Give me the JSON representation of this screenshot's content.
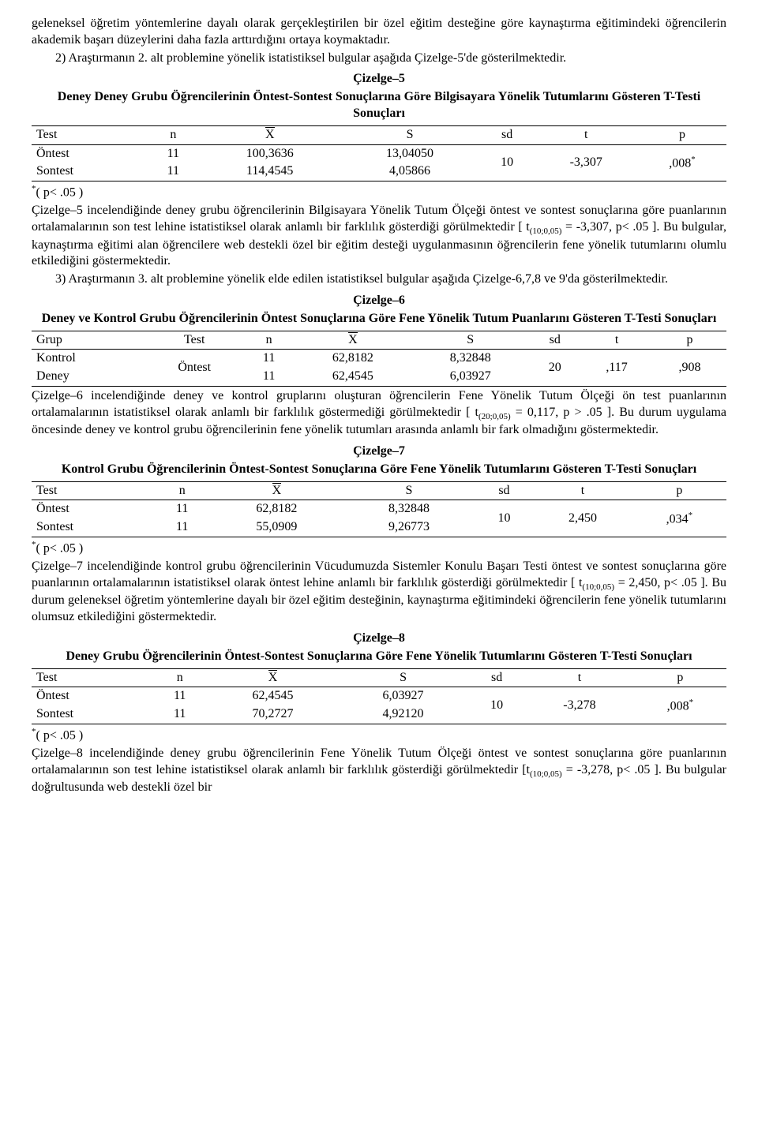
{
  "para1": "geleneksel öğretim yöntemlerine dayalı olarak gerçekleştirilen bir özel eğitim desteğine göre kaynaştırma eğitimindeki öğrencilerin akademik başarı düzeylerini daha fazla arttırdığını ortaya koymaktadır.",
  "para2": "2) Araştırmanın 2. alt problemine yönelik istatistiksel bulgular aşağıda Çizelge-5'de gösterilmektedir.",
  "t5": {
    "title": "Çizelge–5",
    "subtitle": "Deney Grubu Öğrencilerinin Öntest-Sontest Sonuçlarına Göre Bilgisayara Yönelik Tutumlarını Gösteren T-Testi Sonuçları",
    "h_test": "Test",
    "h_n": "n",
    "h_x": "X",
    "h_s": "S",
    "h_sd": "sd",
    "h_t": "t",
    "h_p": "p",
    "r1_test": "Öntest",
    "r1_n": "11",
    "r1_x": "100,3636",
    "r1_s": "13,04050",
    "r2_test": "Sontest",
    "r2_n": "11",
    "r2_x": "114,4545",
    "r2_s": "4,05866",
    "sd": "10",
    "t": "-3,307",
    "p": ",008",
    "note": "( p< .05 )"
  },
  "para3a": "Çizelge–5 incelendiğinde deney grubu öğrencilerinin Bilgisayara Yönelik Tutum Ölçeği öntest ve sontest sonuçlarına göre puanlarının ortalamalarının son test lehine istatistiksel olarak anlamlı bir farklılık gösterdiği görülmektedir [ t",
  "para3b": " = -3,307,   p< .05 ]. Bu bulgular,  kaynaştırma eğitimi alan öğrencilere web destekli özel bir eğitim desteği uygulanmasının öğrencilerin fene yönelik tutumlarını olumlu etkilediğini göstermektedir.",
  "sub3": "(10;0,05)",
  "para4": "3) Araştırmanın 3. alt problemine yönelik elde edilen istatistiksel bulgular aşağıda Çizelge-6,7,8 ve 9'da gösterilmektedir.",
  "t6": {
    "title": "Çizelge–6",
    "subtitle": "Deney ve Kontrol Grubu Öğrencilerinin Öntest Sonuçlarına Göre Fene Yönelik Tutum Puanlarını Gösteren T-Testi Sonuçları",
    "h_grup": "Grup",
    "h_test": "Test",
    "h_n": "n",
    "h_x": "X",
    "h_s": "S",
    "h_sd": "sd",
    "h_t": "t",
    "h_p": "p",
    "r1_grup": "Kontrol",
    "r1_n": "11",
    "r1_x": "62,8182",
    "r1_s": "8,32848",
    "r2_grup": "Deney",
    "r2_n": "11",
    "r2_x": "62,4545",
    "r2_s": "6,03927",
    "test": "Öntest",
    "sd": "20",
    "t": ",117",
    "p": ",908"
  },
  "para5a": "Çizelge–6 incelendiğinde deney ve kontrol gruplarını oluşturan öğrencilerin Fene Yönelik Tutum Ölçeği ön test puanlarının ortalamalarının istatistiksel olarak anlamlı bir farklılık göstermediği görülmektedir [ t",
  "para5b": " = 0,117,   p > .05 ]. Bu durum uygulama öncesinde deney ve kontrol grubu öğrencilerinin fene yönelik tutumları arasında anlamlı bir fark olmadığını göstermektedir.",
  "sub5": "(20;0,05)",
  "t7": {
    "title": "Çizelge–7",
    "subtitle": "Kontrol Grubu Öğrencilerinin Öntest-Sontest Sonuçlarına Göre Fene Yönelik Tutumlarını Gösteren T-Testi Sonuçları",
    "h_test": "Test",
    "h_n": "n",
    "h_x": "X",
    "h_s": "S",
    "h_sd": "sd",
    "h_t": "t",
    "h_p": "p",
    "r1_test": "Öntest",
    "r1_n": "11",
    "r1_x": "62,8182",
    "r1_s": "8,32848",
    "r2_test": "Sontest",
    "r2_n": "11",
    "r2_x": "55,0909",
    "r2_s": "9,26773",
    "sd": "10",
    "t": "2,450",
    "p": ",034",
    "note": "( p< .05 )"
  },
  "para6a": "Çizelge–7 incelendiğinde kontrol grubu öğrencilerinin Vücudumuzda Sistemler Konulu Başarı Testi öntest ve sontest sonuçlarına göre puanlarının ortalamalarının istatistiksel olarak öntest lehine anlamlı bir farklılık gösterdiği görülmektedir [ t",
  "para6b": " = 2,450,    p< .05 ]. Bu durum geleneksel öğretim yöntemlerine dayalı bir özel eğitim desteğinin, kaynaştırma eğitimindeki öğrencilerin fene yönelik tutumlarını olumsuz etkilediğini göstermektedir.",
  "sub6": "(10;0,05)",
  "t8": {
    "title": "Çizelge–8",
    "subtitle": "Deney Grubu Öğrencilerinin Öntest-Sontest Sonuçlarına Göre Fene Yönelik Tutumlarını Gösteren T-Testi Sonuçları",
    "h_test": "Test",
    "h_n": "n",
    "h_x": "X",
    "h_s": "S",
    "h_sd": "sd",
    "h_t": "t",
    "h_p": "p",
    "r1_test": "Öntest",
    "r1_n": "11",
    "r1_x": "62,4545",
    "r1_s": "6,03927",
    "r2_test": "Sontest",
    "r2_n": "11",
    "r2_x": "70,2727",
    "r2_s": "4,92120",
    "sd": "10",
    "t": "-3,278",
    "p": ",008",
    "note": "( p< .05 )"
  },
  "para7a": "Çizelge–8 incelendiğinde deney grubu öğrencilerinin Fene Yönelik Tutum Ölçeği öntest ve sontest sonuçlarına göre puanlarının ortalamalarının son test lehine istatistiksel olarak anlamlı bir farklılık gösterdiği görülmektedir [t",
  "para7b": " = -3,278,   p< .05 ]. Bu bulgular doğrultusunda web destekli özel bir",
  "sub7": "(10;0,05)"
}
